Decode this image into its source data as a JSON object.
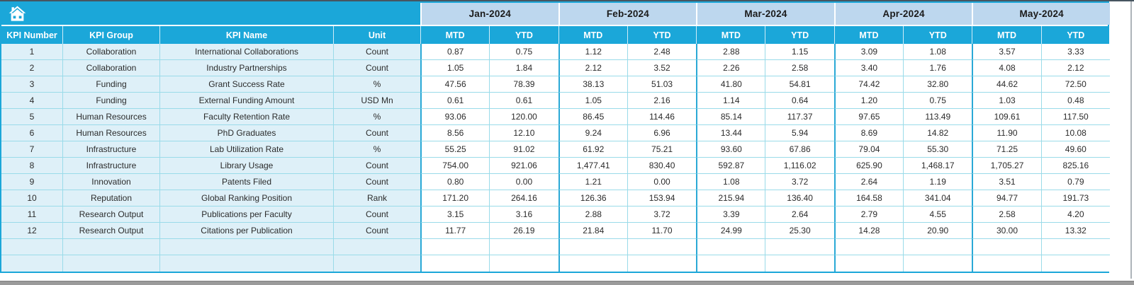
{
  "colors": {
    "accent": "#1ba7d9",
    "accent_strong": "#2aa9d6",
    "month_bg": "#bdd7ee",
    "month_text": "#1b1b1b",
    "tint": "#def0f8",
    "grid": "#9adbe9",
    "edge": "#475560",
    "bar": "#9b9b9b"
  },
  "table": {
    "corner_icon": "home-icon",
    "months": [
      "Jan-2024",
      "Feb-2024",
      "Mar-2024",
      "Apr-2024",
      "May-2024"
    ],
    "sub_headers": [
      "MTD",
      "YTD"
    ],
    "left_headers": [
      "KPI Number",
      "KPI Group",
      "KPI Name",
      "Unit"
    ],
    "rows": [
      {
        "number": "1",
        "group": "Collaboration",
        "name": "International Collaborations",
        "unit": "Count",
        "values": [
          "0.87",
          "0.75",
          "1.12",
          "2.48",
          "2.88",
          "1.15",
          "3.09",
          "1.08",
          "3.57",
          "3.33"
        ]
      },
      {
        "number": "2",
        "group": "Collaboration",
        "name": "Industry Partnerships",
        "unit": "Count",
        "values": [
          "1.05",
          "1.84",
          "2.12",
          "3.52",
          "2.26",
          "2.58",
          "3.40",
          "1.76",
          "4.08",
          "2.12"
        ]
      },
      {
        "number": "3",
        "group": "Funding",
        "name": "Grant Success Rate",
        "unit": "%",
        "values": [
          "47.56",
          "78.39",
          "38.13",
          "51.03",
          "41.80",
          "54.81",
          "74.42",
          "32.80",
          "44.62",
          "72.50"
        ]
      },
      {
        "number": "4",
        "group": "Funding",
        "name": "External Funding Amount",
        "unit": "USD Mn",
        "values": [
          "0.61",
          "0.61",
          "1.05",
          "2.16",
          "1.14",
          "0.64",
          "1.20",
          "0.75",
          "1.03",
          "0.48"
        ]
      },
      {
        "number": "5",
        "group": "Human Resources",
        "name": "Faculty Retention Rate",
        "unit": "%",
        "values": [
          "93.06",
          "120.00",
          "86.45",
          "114.46",
          "85.14",
          "117.37",
          "97.65",
          "113.49",
          "109.61",
          "117.50"
        ]
      },
      {
        "number": "6",
        "group": "Human Resources",
        "name": "PhD Graduates",
        "unit": "Count",
        "values": [
          "8.56",
          "12.10",
          "9.24",
          "6.96",
          "13.44",
          "5.94",
          "8.69",
          "14.82",
          "11.90",
          "10.08"
        ]
      },
      {
        "number": "7",
        "group": "Infrastructure",
        "name": "Lab Utilization Rate",
        "unit": "%",
        "values": [
          "55.25",
          "91.02",
          "61.92",
          "75.21",
          "93.60",
          "67.86",
          "79.04",
          "55.30",
          "71.25",
          "49.60"
        ]
      },
      {
        "number": "8",
        "group": "Infrastructure",
        "name": "Library Usage",
        "unit": "Count",
        "values": [
          "754.00",
          "921.06",
          "1,477.41",
          "830.40",
          "592.87",
          "1,116.02",
          "625.90",
          "1,468.17",
          "1,705.27",
          "825.16"
        ]
      },
      {
        "number": "9",
        "group": "Innovation",
        "name": "Patents Filed",
        "unit": "Count",
        "values": [
          "0.80",
          "0.00",
          "1.21",
          "0.00",
          "1.08",
          "3.72",
          "2.64",
          "1.19",
          "3.51",
          "0.79"
        ]
      },
      {
        "number": "10",
        "group": "Reputation",
        "name": "Global Ranking Position",
        "unit": "Rank",
        "values": [
          "171.20",
          "264.16",
          "126.36",
          "153.94",
          "215.94",
          "136.40",
          "164.58",
          "341.04",
          "94.77",
          "191.73"
        ]
      },
      {
        "number": "11",
        "group": "Research Output",
        "name": "Publications per Faculty",
        "unit": "Count",
        "values": [
          "3.15",
          "3.16",
          "2.88",
          "3.72",
          "3.39",
          "2.64",
          "2.79",
          "4.55",
          "2.58",
          "4.20"
        ]
      },
      {
        "number": "12",
        "group": "Research Output",
        "name": "Citations per Publication",
        "unit": "Count",
        "values": [
          "11.77",
          "26.19",
          "21.84",
          "11.70",
          "24.99",
          "25.30",
          "14.28",
          "20.90",
          "30.00",
          "13.32"
        ]
      }
    ],
    "empty_row_count": 2
  }
}
